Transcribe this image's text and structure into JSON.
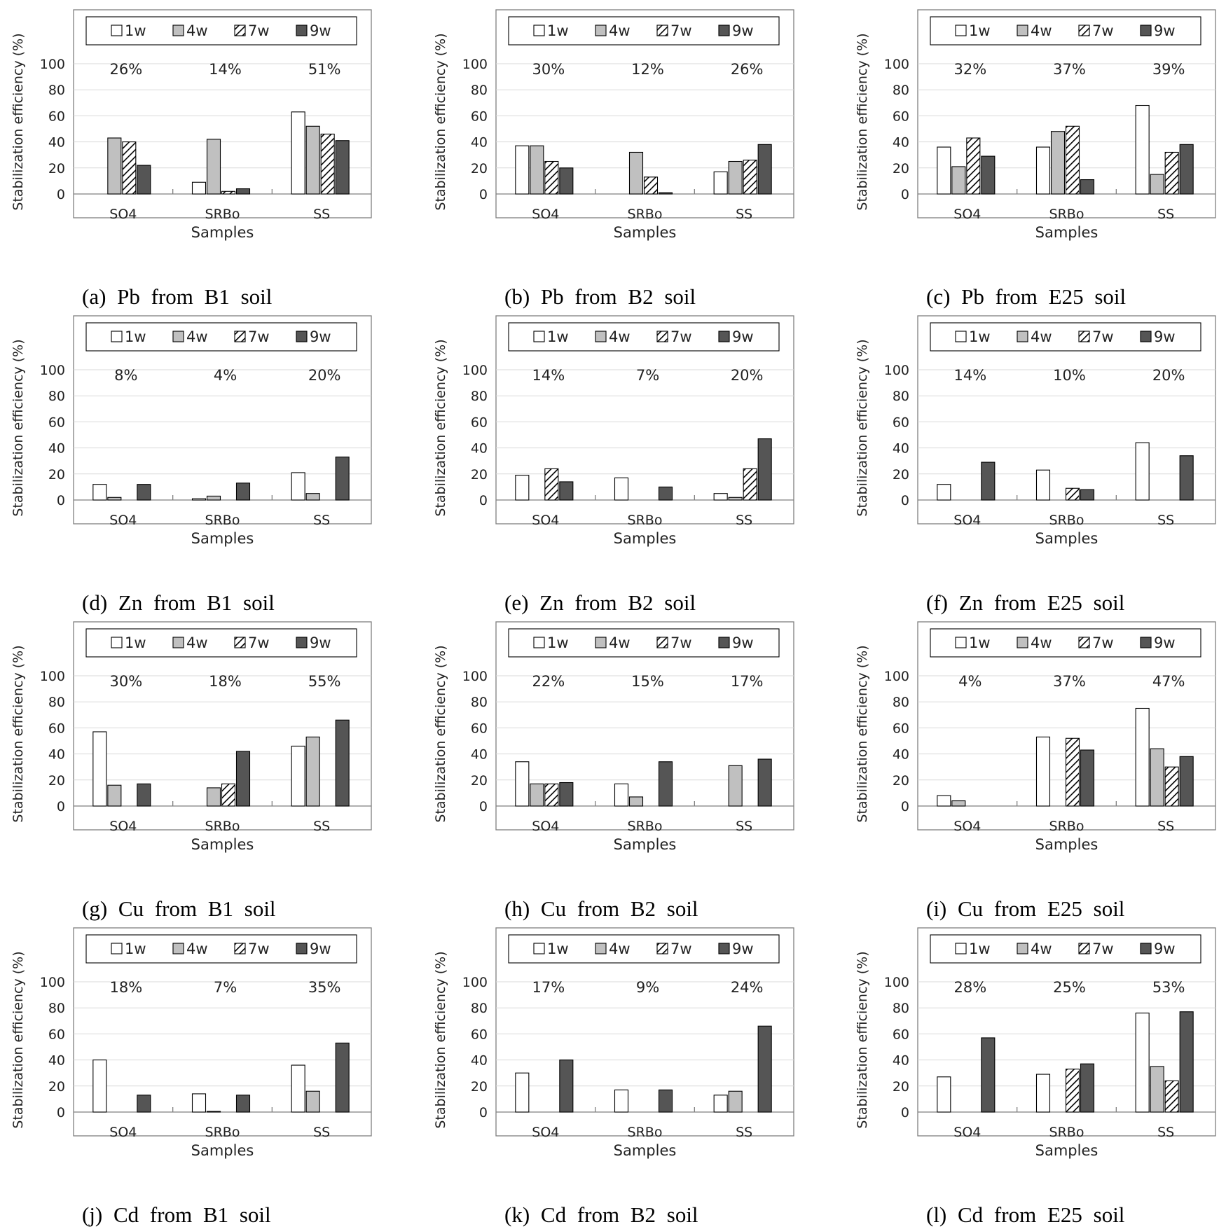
{
  "figure": {
    "legend_labels": [
      "1w",
      "4w",
      "7w",
      "9w"
    ],
    "colors": {
      "1w": "#ffffff",
      "4w": "#c0c0c0",
      "7w": "hatch",
      "9w": "#555555",
      "axis": "#7f7f7f",
      "grid": "#d9d9d9"
    }
  },
  "chart_data": [
    {
      "type": "bar",
      "caption": "(a) Pb from B1 soil",
      "xlabel": "Samples",
      "ylabel": "Stabilization efficiency (%)",
      "ylim": [
        0,
        100
      ],
      "yticks": [
        0,
        20,
        40,
        60,
        80,
        100
      ],
      "categories": [
        "SO4",
        "SRBo",
        "SS"
      ],
      "annotations": [
        "26%",
        "14%",
        "51%"
      ],
      "series": [
        {
          "name": "1w",
          "values": [
            0,
            9,
            63
          ]
        },
        {
          "name": "4w",
          "values": [
            43,
            42,
            52
          ]
        },
        {
          "name": "7w",
          "values": [
            40,
            2,
            46
          ]
        },
        {
          "name": "9w",
          "values": [
            22,
            4,
            41
          ]
        }
      ]
    },
    {
      "type": "bar",
      "caption": "(b) Pb from B2 soil",
      "xlabel": "Samples",
      "ylabel": "Stabilization efficiency (%)",
      "ylim": [
        0,
        100
      ],
      "yticks": [
        0,
        20,
        40,
        60,
        80,
        100
      ],
      "categories": [
        "SO4",
        "SRBo",
        "SS"
      ],
      "annotations": [
        "30%",
        "12%",
        "26%"
      ],
      "series": [
        {
          "name": "1w",
          "values": [
            37,
            0,
            17
          ]
        },
        {
          "name": "4w",
          "values": [
            37,
            32,
            25
          ]
        },
        {
          "name": "7w",
          "values": [
            25,
            13,
            26
          ]
        },
        {
          "name": "9w",
          "values": [
            20,
            1,
            38
          ]
        }
      ]
    },
    {
      "type": "bar",
      "caption": "(c) Pb from E25 soil",
      "xlabel": "Samples",
      "ylabel": "Stabilization efficiency (%)",
      "ylim": [
        0,
        100
      ],
      "yticks": [
        0,
        20,
        40,
        60,
        80,
        100
      ],
      "categories": [
        "SO4",
        "SRBo",
        "SS"
      ],
      "annotations": [
        "32%",
        "37%",
        "39%"
      ],
      "series": [
        {
          "name": "1w",
          "values": [
            36,
            36,
            68
          ]
        },
        {
          "name": "4w",
          "values": [
            21,
            48,
            15
          ]
        },
        {
          "name": "7w",
          "values": [
            43,
            52,
            32
          ]
        },
        {
          "name": "9w",
          "values": [
            29,
            11,
            38
          ]
        }
      ]
    },
    {
      "type": "bar",
      "caption": "(d) Zn from B1 soil",
      "xlabel": "Samples",
      "ylabel": "Stabilization efficiency (%)",
      "ylim": [
        0,
        100
      ],
      "yticks": [
        0,
        20,
        40,
        60,
        80,
        100
      ],
      "categories": [
        "SO4",
        "SRBo",
        "SS"
      ],
      "annotations": [
        "8%",
        "4%",
        "20%"
      ],
      "series": [
        {
          "name": "1w",
          "values": [
            12,
            1,
            21
          ]
        },
        {
          "name": "4w",
          "values": [
            2,
            3,
            5
          ]
        },
        {
          "name": "7w",
          "values": [
            0,
            0,
            0
          ]
        },
        {
          "name": "9w",
          "values": [
            12,
            13,
            33
          ]
        }
      ]
    },
    {
      "type": "bar",
      "caption": "(e) Zn from B2 soil",
      "xlabel": "Samples",
      "ylabel": "Stabilization efficiency (%)",
      "ylim": [
        0,
        100
      ],
      "yticks": [
        0,
        20,
        40,
        60,
        80,
        100
      ],
      "categories": [
        "SO4",
        "SRBo",
        "SS"
      ],
      "annotations": [
        "14%",
        "7%",
        "20%"
      ],
      "series": [
        {
          "name": "1w",
          "values": [
            19,
            17,
            5
          ]
        },
        {
          "name": "4w",
          "values": [
            0,
            0,
            2
          ]
        },
        {
          "name": "7w",
          "values": [
            24,
            0,
            24
          ]
        },
        {
          "name": "9w",
          "values": [
            14,
            10,
            47
          ]
        }
      ]
    },
    {
      "type": "bar",
      "caption": "(f) Zn from E25 soil",
      "xlabel": "Samples",
      "ylabel": "Stabilization efficiency (%)",
      "ylim": [
        0,
        100
      ],
      "yticks": [
        0,
        20,
        40,
        60,
        80,
        100
      ],
      "categories": [
        "SO4",
        "SRBo",
        "SS"
      ],
      "annotations": [
        "14%",
        "10%",
        "20%"
      ],
      "series": [
        {
          "name": "1w",
          "values": [
            12,
            23,
            44
          ]
        },
        {
          "name": "4w",
          "values": [
            0,
            0,
            0
          ]
        },
        {
          "name": "7w",
          "values": [
            0,
            9,
            0
          ]
        },
        {
          "name": "9w",
          "values": [
            29,
            8,
            34
          ]
        }
      ]
    },
    {
      "type": "bar",
      "caption": "(g) Cu from B1 soil",
      "xlabel": "Samples",
      "ylabel": "Stabilization efficiency (%)",
      "ylim": [
        0,
        100
      ],
      "yticks": [
        0,
        20,
        40,
        60,
        80,
        100
      ],
      "categories": [
        "SO4",
        "SRBo",
        "SS"
      ],
      "annotations": [
        "30%",
        "18%",
        "55%"
      ],
      "series": [
        {
          "name": "1w",
          "values": [
            57,
            0,
            46
          ]
        },
        {
          "name": "4w",
          "values": [
            16,
            14,
            53
          ]
        },
        {
          "name": "7w",
          "values": [
            0,
            17,
            0
          ]
        },
        {
          "name": "9w",
          "values": [
            17,
            42,
            66
          ]
        }
      ]
    },
    {
      "type": "bar",
      "caption": "(h) Cu from B2 soil",
      "xlabel": "Samples",
      "ylabel": "Stabilization efficiency (%)",
      "ylim": [
        0,
        100
      ],
      "yticks": [
        0,
        20,
        40,
        60,
        80,
        100
      ],
      "categories": [
        "SO4",
        "SRBo",
        "SS"
      ],
      "annotations": [
        "22%",
        "15%",
        "17%"
      ],
      "series": [
        {
          "name": "1w",
          "values": [
            34,
            17,
            0
          ]
        },
        {
          "name": "4w",
          "values": [
            17,
            7,
            31
          ]
        },
        {
          "name": "7w",
          "values": [
            17,
            0,
            0
          ]
        },
        {
          "name": "9w",
          "values": [
            18,
            34,
            36
          ]
        }
      ]
    },
    {
      "type": "bar",
      "caption": "(i) Cu from E25 soil",
      "xlabel": "Samples",
      "ylabel": "Stabilization efficiency (%)",
      "ylim": [
        0,
        100
      ],
      "yticks": [
        0,
        20,
        40,
        60,
        80,
        100
      ],
      "categories": [
        "SO4",
        "SRBo",
        "SS"
      ],
      "annotations": [
        "4%",
        "37%",
        "47%"
      ],
      "series": [
        {
          "name": "1w",
          "values": [
            8,
            53,
            75
          ]
        },
        {
          "name": "4w",
          "values": [
            4,
            0,
            44
          ]
        },
        {
          "name": "7w",
          "values": [
            0,
            52,
            30
          ]
        },
        {
          "name": "9w",
          "values": [
            0,
            43,
            38
          ]
        }
      ]
    },
    {
      "type": "bar",
      "caption": "(j) Cd from B1 soil",
      "xlabel": "Samples",
      "ylabel": "Stabilization efficiency (%)",
      "ylim": [
        0,
        100
      ],
      "yticks": [
        0,
        20,
        40,
        60,
        80,
        100
      ],
      "categories": [
        "SO4",
        "SRBo",
        "SS"
      ],
      "annotations": [
        "18%",
        "7%",
        "35%"
      ],
      "series": [
        {
          "name": "1w",
          "values": [
            40,
            14,
            36
          ]
        },
        {
          "name": "4w",
          "values": [
            0,
            0.5,
            16
          ]
        },
        {
          "name": "7w",
          "values": [
            0,
            0,
            0
          ]
        },
        {
          "name": "9w",
          "values": [
            13,
            13,
            53
          ]
        }
      ]
    },
    {
      "type": "bar",
      "caption": "(k) Cd from B2 soil",
      "xlabel": "Samples",
      "ylabel": "Stabilization efficiency (%)",
      "ylim": [
        0,
        100
      ],
      "yticks": [
        0,
        20,
        40,
        60,
        80,
        100
      ],
      "categories": [
        "SO4",
        "SRBo",
        "SS"
      ],
      "annotations": [
        "17%",
        "9%",
        "24%"
      ],
      "series": [
        {
          "name": "1w",
          "values": [
            30,
            17,
            13
          ]
        },
        {
          "name": "4w",
          "values": [
            0,
            0,
            16
          ]
        },
        {
          "name": "7w",
          "values": [
            0,
            0,
            0
          ]
        },
        {
          "name": "9w",
          "values": [
            40,
            17,
            66
          ]
        }
      ]
    },
    {
      "type": "bar",
      "caption": "(l) Cd from E25 soil",
      "xlabel": "Samples",
      "ylabel": "Stabilization efficiency (%)",
      "ylim": [
        0,
        100
      ],
      "yticks": [
        0,
        20,
        40,
        60,
        80,
        100
      ],
      "categories": [
        "SO4",
        "SRBo",
        "SS"
      ],
      "annotations": [
        "28%",
        "25%",
        "53%"
      ],
      "series": [
        {
          "name": "1w",
          "values": [
            27,
            29,
            76
          ]
        },
        {
          "name": "4w",
          "values": [
            0,
            0,
            35
          ]
        },
        {
          "name": "7w",
          "values": [
            0,
            33,
            24
          ]
        },
        {
          "name": "9w",
          "values": [
            57,
            37,
            77
          ]
        }
      ]
    }
  ]
}
